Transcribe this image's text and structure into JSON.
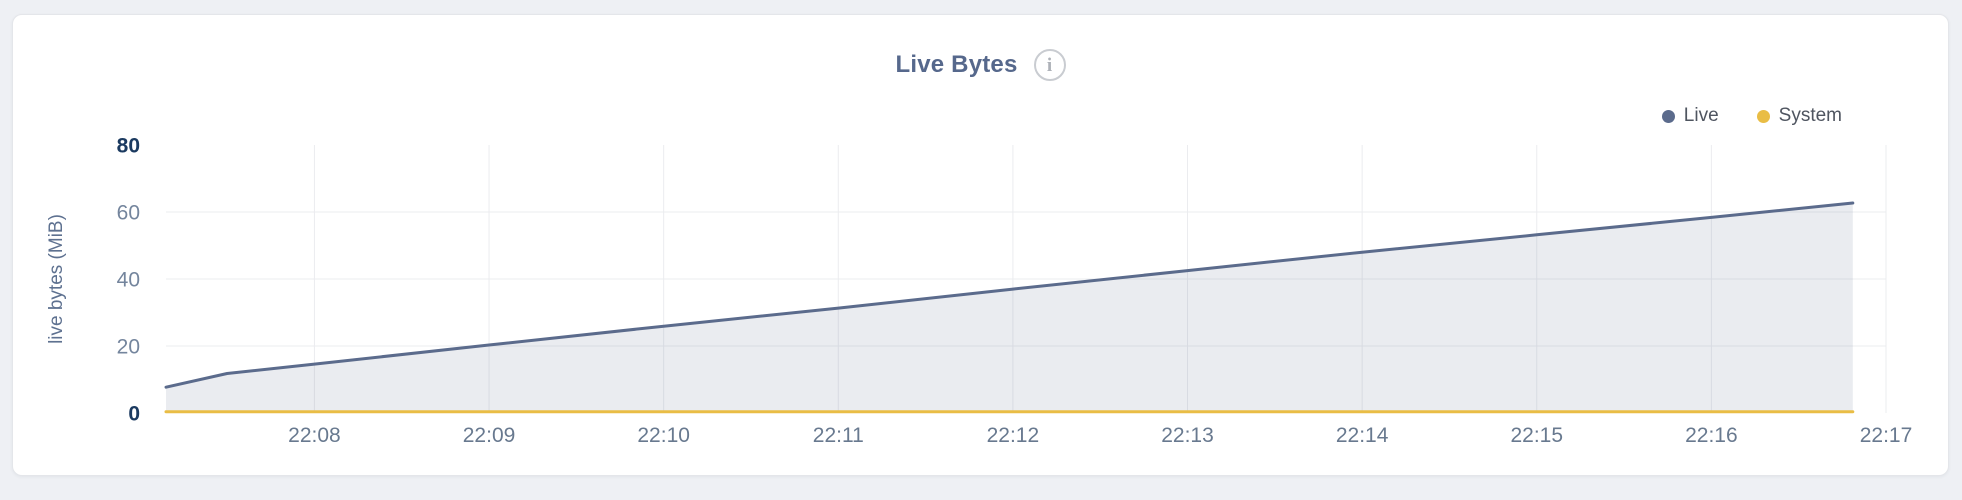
{
  "page": {
    "background": "#eef0f4"
  },
  "header": {
    "title": "Live Bytes",
    "info_icon_glyph": "i"
  },
  "legend": {
    "position": "top-right",
    "items": [
      {
        "label": "Live",
        "color": "#5b6b8c"
      },
      {
        "label": "System",
        "color": "#e9bd45"
      }
    ]
  },
  "chart_data": {
    "type": "area",
    "title": "Live Bytes",
    "xlabel": "",
    "ylabel": "live bytes (MiB)",
    "grid": true,
    "legend_position": "top-right",
    "x_unit": "minutes after 22:00",
    "x_domain": [
      7.15,
      17
    ],
    "ylim": [
      0,
      80
    ],
    "x_ticks": [
      {
        "t": 8,
        "label": "22:08"
      },
      {
        "t": 9,
        "label": "22:09"
      },
      {
        "t": 10,
        "label": "22:10"
      },
      {
        "t": 11,
        "label": "22:11"
      },
      {
        "t": 12,
        "label": "22:12"
      },
      {
        "t": 13,
        "label": "22:13"
      },
      {
        "t": 14,
        "label": "22:14"
      },
      {
        "t": 15,
        "label": "22:15"
      },
      {
        "t": 16,
        "label": "22:16"
      },
      {
        "t": 17,
        "label": "22:17"
      }
    ],
    "y_ticks": [
      {
        "v": 0,
        "label": "0",
        "strong": true,
        "gridline": false
      },
      {
        "v": 20,
        "label": "20",
        "strong": false,
        "gridline": true
      },
      {
        "v": 40,
        "label": "40",
        "strong": false,
        "gridline": true
      },
      {
        "v": 60,
        "label": "60",
        "strong": false,
        "gridline": true
      },
      {
        "v": 80,
        "label": "80",
        "strong": true,
        "gridline": false
      }
    ],
    "series": [
      {
        "name": "Live",
        "color": "#5b6b8c",
        "line_width": 3,
        "fill": "rgba(91,107,140,0.13)",
        "points": [
          [
            7.15,
            7.7
          ],
          [
            7.5,
            11.8
          ],
          [
            8,
            14.6
          ],
          [
            9,
            20.3
          ],
          [
            10,
            25.9
          ],
          [
            11,
            31.3
          ],
          [
            12,
            37.0
          ],
          [
            13,
            42.5
          ],
          [
            14,
            48.0
          ],
          [
            15,
            53.2
          ],
          [
            16,
            58.4
          ],
          [
            16.81,
            62.7
          ]
        ]
      },
      {
        "name": "System",
        "color": "#e9bd45",
        "line_width": 3,
        "fill": null,
        "points": [
          [
            7.15,
            0.4
          ],
          [
            16.81,
            0.4
          ]
        ]
      }
    ]
  }
}
